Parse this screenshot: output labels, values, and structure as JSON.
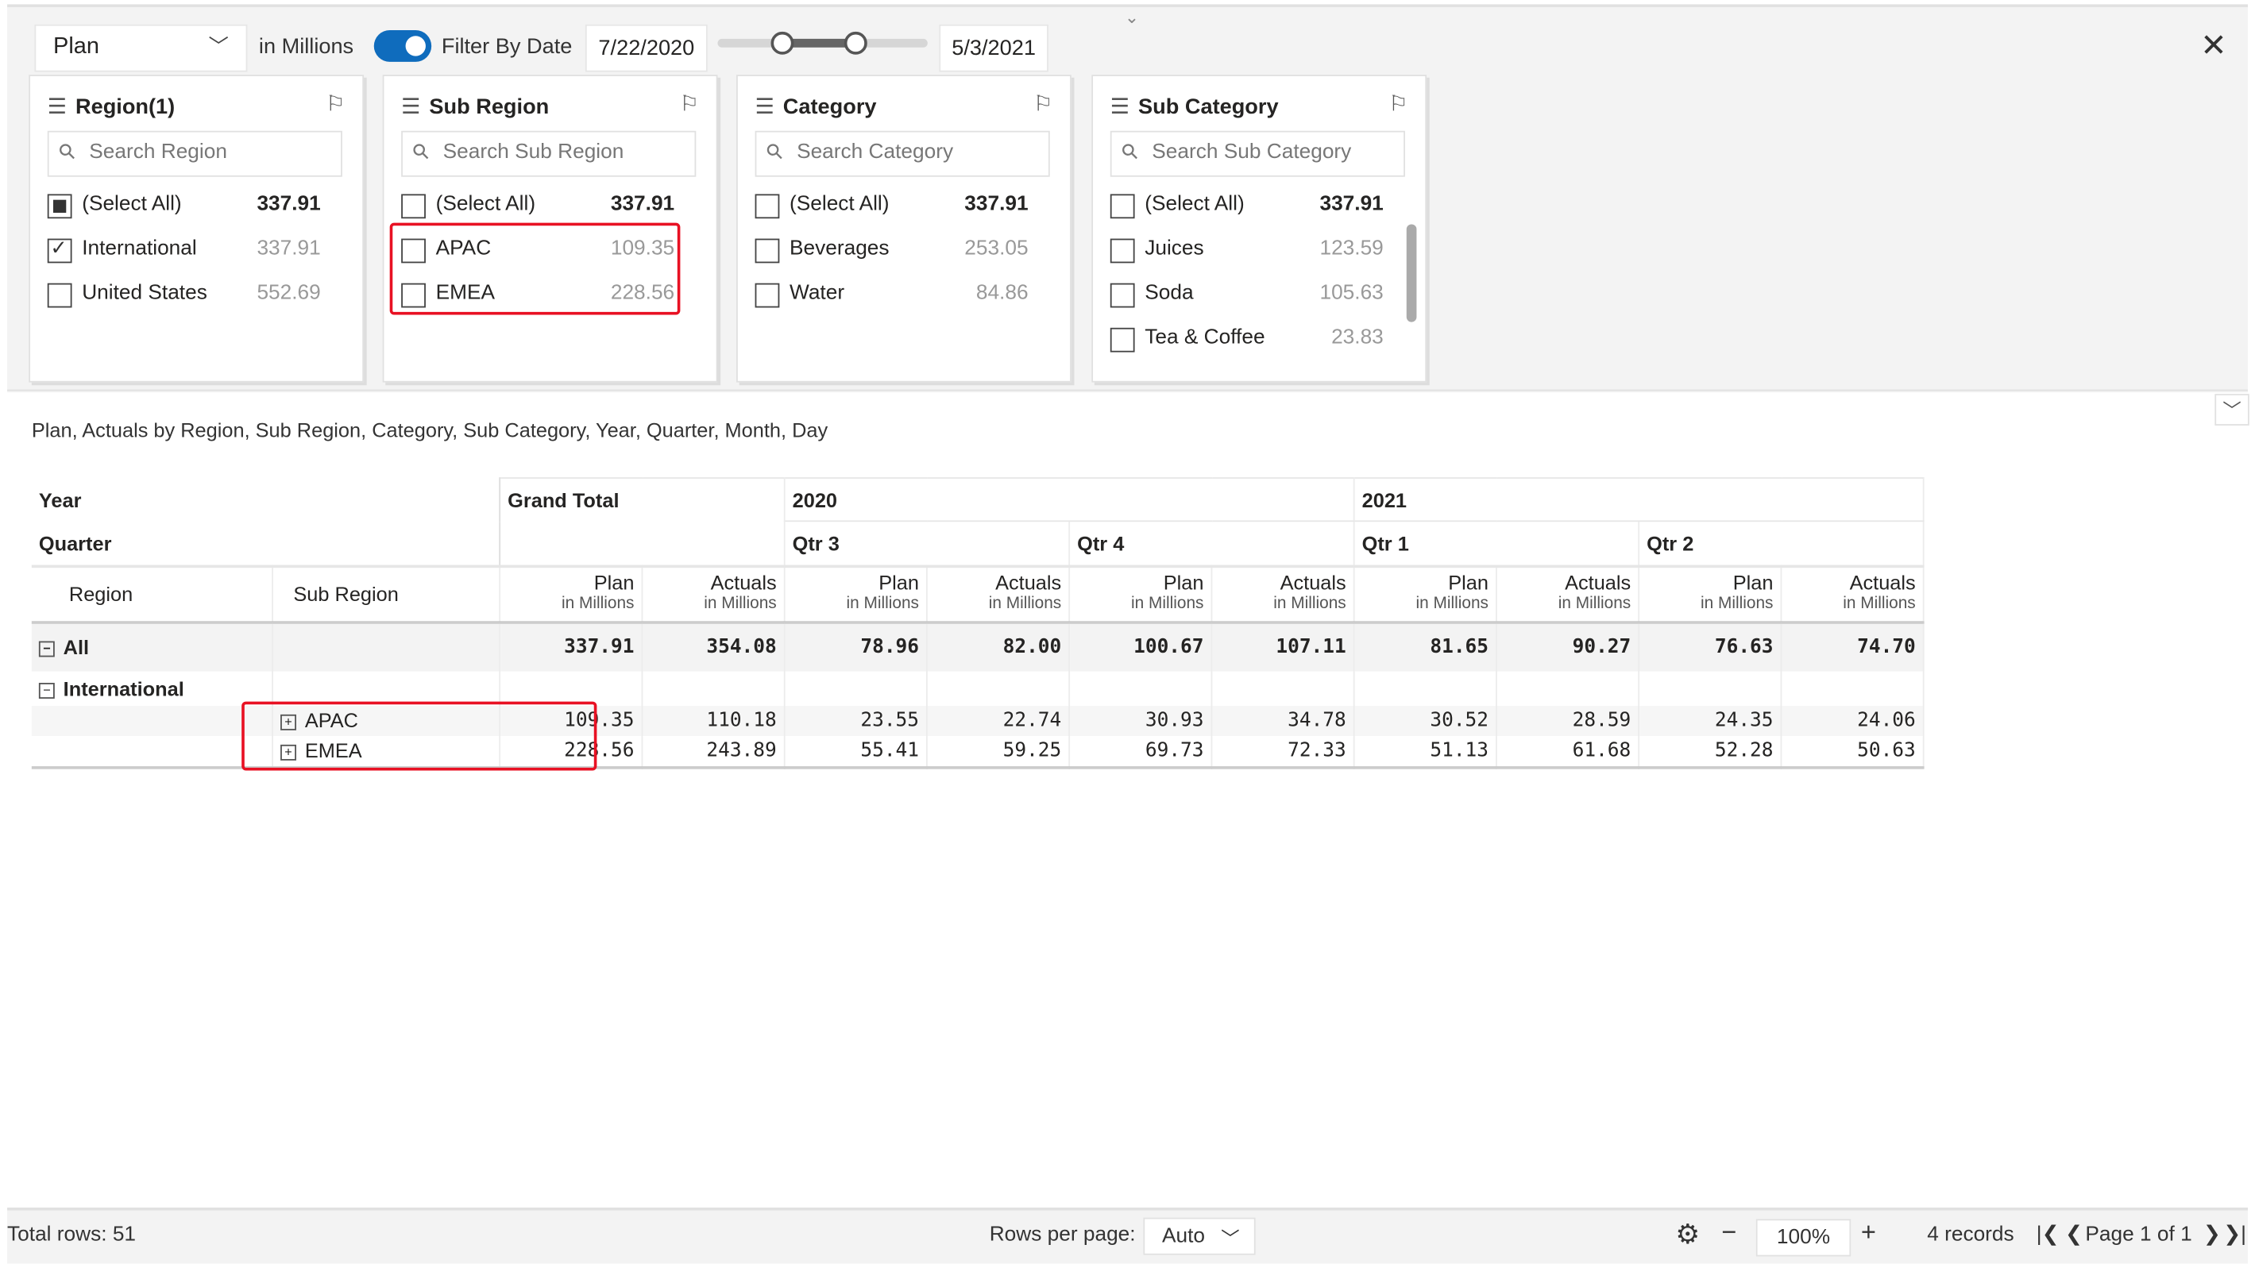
{
  "toolbar": {
    "measure": "Plan",
    "units": "in Millions",
    "filter_by_date_label": "Filter By Date",
    "filter_by_date_on": true,
    "start_date": "7/22/2020",
    "end_date": "5/3/2021",
    "accent": "#0f6cbd"
  },
  "slicers": [
    {
      "title": "Region(1)",
      "search_placeholder": "Search Region",
      "items": [
        {
          "label": "(Select All)",
          "value": "337.91",
          "state": "partial",
          "bold": true
        },
        {
          "label": "International",
          "value": "337.91",
          "state": "checked"
        },
        {
          "label": "United States",
          "value": "552.69",
          "state": "unchecked",
          "muted": true
        }
      ]
    },
    {
      "title": "Sub Region",
      "search_placeholder": "Search Sub Region",
      "items": [
        {
          "label": "(Select All)",
          "value": "337.91",
          "state": "unchecked",
          "bold": true
        },
        {
          "label": "APAC",
          "value": "109.35",
          "state": "unchecked",
          "muted": true
        },
        {
          "label": "EMEA",
          "value": "228.56",
          "state": "unchecked",
          "muted": true
        }
      ]
    },
    {
      "title": "Category",
      "search_placeholder": "Search Category",
      "items": [
        {
          "label": "(Select All)",
          "value": "337.91",
          "state": "unchecked",
          "bold": true
        },
        {
          "label": "Beverages",
          "value": "253.05",
          "state": "unchecked",
          "muted": true
        },
        {
          "label": "Water",
          "value": "84.86",
          "state": "unchecked",
          "muted": true
        }
      ]
    },
    {
      "title": "Sub Category",
      "search_placeholder": "Search Sub Category",
      "items": [
        {
          "label": "(Select All)",
          "value": "337.91",
          "state": "unchecked",
          "bold": true
        },
        {
          "label": "Juices",
          "value": "123.59",
          "state": "unchecked",
          "muted": true
        },
        {
          "label": "Soda",
          "value": "105.63",
          "state": "unchecked",
          "muted": true
        },
        {
          "label": "Tea & Coffee",
          "value": "23.83",
          "state": "unchecked",
          "muted": true
        }
      ]
    }
  ],
  "visual_title": "Plan, Actuals by Region, Sub Region, Category, Sub Category, Year, Quarter, Month, Day",
  "table": {
    "year_label": "Year",
    "quarter_label": "Quarter",
    "region_label": "Region",
    "subregion_label": "Sub Region",
    "grand_total": "Grand Total",
    "years": [
      {
        "label": "2020",
        "quarters": [
          "Qtr 3",
          "Qtr 4"
        ]
      },
      {
        "label": "2021",
        "quarters": [
          "Qtr 1",
          "Qtr 2"
        ]
      }
    ],
    "measures": [
      "Plan",
      "Actuals"
    ],
    "unit": "in Millions",
    "rows": [
      {
        "region": "All",
        "subregion": "",
        "values": [
          "337.91",
          "354.08",
          "78.96",
          "82.00",
          "100.67",
          "107.11",
          "81.65",
          "90.27",
          "76.63",
          "74.70"
        ]
      },
      {
        "region": "International",
        "subregion": "",
        "values": []
      },
      {
        "region": "",
        "subregion": "APAC",
        "values": [
          "109.35",
          "110.18",
          "23.55",
          "22.74",
          "30.93",
          "34.78",
          "30.52",
          "28.59",
          "24.35",
          "24.06"
        ]
      },
      {
        "region": "",
        "subregion": "EMEA",
        "values": [
          "228.56",
          "243.89",
          "55.41",
          "59.25",
          "69.73",
          "72.33",
          "51.13",
          "61.68",
          "52.28",
          "50.63"
        ]
      }
    ]
  },
  "footer": {
    "total_rows": "Total rows: 51",
    "rows_per_page_label": "Rows per page:",
    "rows_per_page": "Auto",
    "zoom": "100%",
    "records": "4 records",
    "page": "Page 1 of 1"
  }
}
